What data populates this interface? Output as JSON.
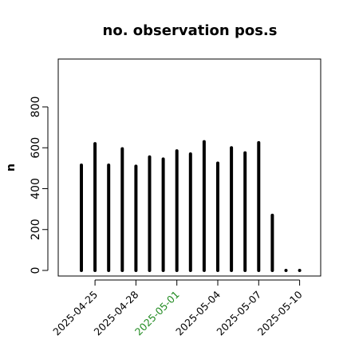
{
  "chart_data": {
    "type": "bar",
    "title": "no. observation pos.s",
    "ylabel": "n",
    "xlabel": "",
    "ylim": [
      -30,
      1030
    ],
    "yticks": [
      0,
      200,
      400,
      600,
      800
    ],
    "grid": false,
    "x_start": "2025-04-23",
    "dates": [
      "2025-04-24",
      "2025-04-25",
      "2025-04-26",
      "2025-04-27",
      "2025-04-28",
      "2025-04-29",
      "2025-04-30",
      "2025-05-01",
      "2025-05-02",
      "2025-05-03",
      "2025-05-04",
      "2025-05-05",
      "2025-05-06",
      "2025-05-07",
      "2025-05-08",
      "2025-05-09",
      "2025-05-10"
    ],
    "values": [
      515,
      620,
      515,
      595,
      510,
      555,
      545,
      585,
      570,
      630,
      525,
      600,
      575,
      625,
      270,
      0,
      0
    ],
    "x_tick_labels": [
      "2025-04-25",
      "2025-04-28",
      "2025-05-01",
      "2025-05-04",
      "2025-05-07",
      "2025-05-10"
    ],
    "highlight_tick": "2025-05-01",
    "highlight_color": "#228B22"
  }
}
